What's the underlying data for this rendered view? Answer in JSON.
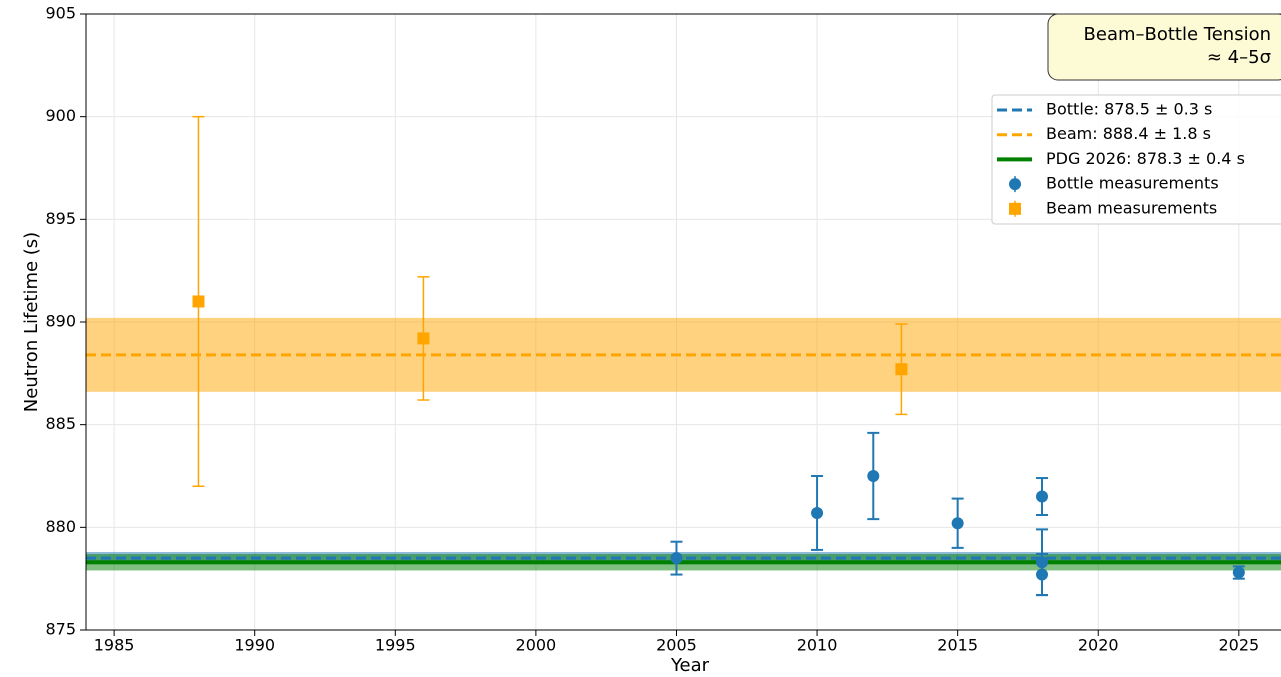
{
  "chart_data": {
    "type": "errorbar",
    "xlabel": "Year",
    "ylabel": "Neutron Lifetime (s)",
    "xlim": [
      1984,
      2026.5
    ],
    "xticks": [
      1985,
      1990,
      1995,
      2000,
      2005,
      2010,
      2015,
      2020,
      2025
    ],
    "ylim": [
      875,
      905
    ],
    "yticks": [
      875,
      880,
      885,
      890,
      895,
      900,
      905
    ],
    "grid": true,
    "legend": "upper right",
    "annotation": [
      "Beam–Bottle Tension",
      "≈ 4–5σ"
    ],
    "lines": [
      {
        "name": "Bottle: 878.5 ± 0.3 s",
        "value": 878.5,
        "error": 0.3,
        "color": "#1f77b4",
        "style": "dashed"
      },
      {
        "name": "Beam: 888.4 ± 1.8 s",
        "value": 888.4,
        "error": 1.8,
        "color": "#ffa500",
        "style": "dashed"
      },
      {
        "name": "PDG 2026: 878.3 ± 0.4 s",
        "value": 878.3,
        "error": 0.4,
        "color": "#008000",
        "style": "solid"
      }
    ],
    "series": [
      {
        "name": "Bottle measurements",
        "color": "#1f77b4",
        "marker": "circle",
        "x": [
          2005,
          2010,
          2012,
          2015,
          2018,
          2018,
          2018,
          2025
        ],
        "values": [
          878.5,
          880.7,
          882.5,
          880.2,
          881.5,
          878.3,
          877.7,
          877.8
        ],
        "errors": [
          0.8,
          1.8,
          2.1,
          1.2,
          0.9,
          1.6,
          1.0,
          0.3
        ]
      },
      {
        "name": "Beam measurements",
        "color": "#ffa500",
        "marker": "square",
        "x": [
          1988,
          1996,
          2013
        ],
        "values": [
          891,
          889.2,
          887.7
        ],
        "errors": [
          9,
          3.0,
          2.2
        ]
      }
    ]
  }
}
